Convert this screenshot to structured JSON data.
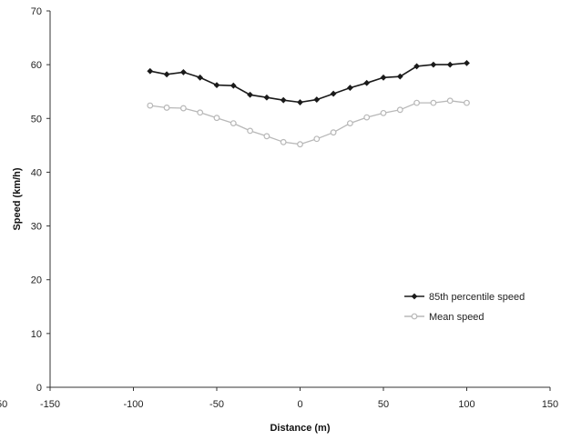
{
  "chart_data": {
    "type": "line",
    "title": "",
    "xlabel": "Distance (m)",
    "ylabel": "Speed (km/h)",
    "xlim": [
      -150,
      150
    ],
    "ylim": [
      0,
      70
    ],
    "x_ticks": [
      -150,
      -100,
      -50,
      0,
      50,
      100,
      150
    ],
    "y_ticks": [
      0,
      10,
      20,
      30,
      40,
      50,
      60,
      70
    ],
    "grid": false,
    "legend_position": "lower-right",
    "edge_fragment": "50",
    "x": [
      -90,
      -80,
      -70,
      -60,
      -50,
      -40,
      -30,
      -20,
      -10,
      0,
      10,
      20,
      30,
      40,
      50,
      60,
      70,
      80,
      90,
      100
    ],
    "series": [
      {
        "name": "85th percentile speed",
        "color": "#1a1a1a",
        "marker": "filled-diamond",
        "values": [
          58.8,
          58.2,
          58.6,
          57.6,
          56.2,
          56.1,
          54.4,
          53.9,
          53.4,
          53.0,
          53.5,
          54.6,
          55.7,
          56.6,
          57.6,
          57.8,
          59.7,
          60.0,
          60.0,
          60.3
        ]
      },
      {
        "name": "Mean speed",
        "color": "#b8b8b8",
        "marker": "open-circle",
        "values": [
          52.4,
          52.0,
          51.9,
          51.1,
          50.1,
          49.1,
          47.7,
          46.7,
          45.6,
          45.2,
          46.2,
          47.4,
          49.1,
          50.2,
          51.0,
          51.6,
          52.9,
          52.9,
          53.3,
          52.9
        ]
      }
    ]
  }
}
